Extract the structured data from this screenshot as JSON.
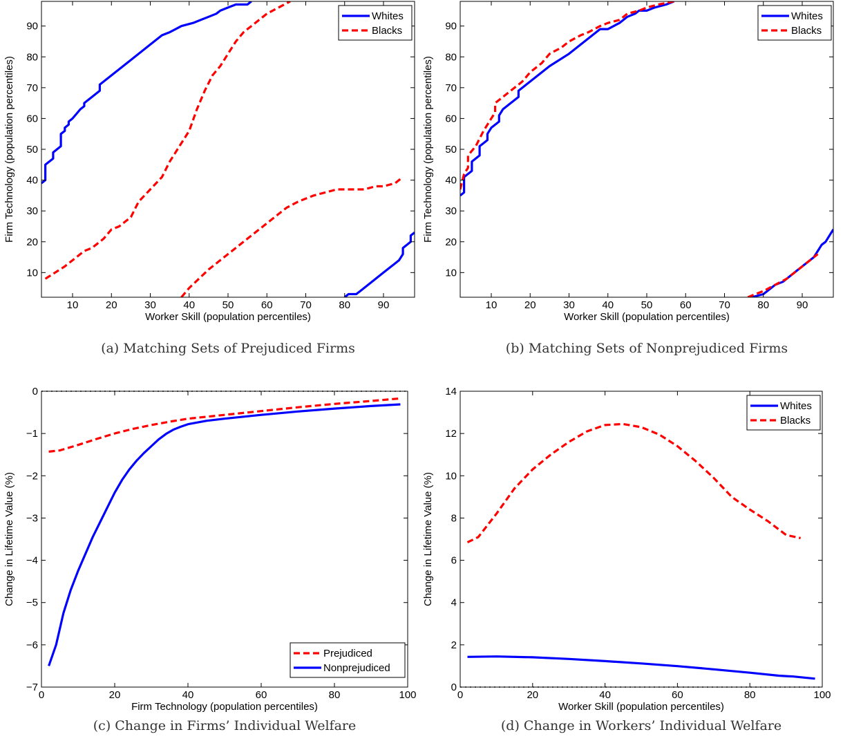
{
  "colors": {
    "blue": "#0000ff",
    "red": "#ff0000"
  },
  "chart_data": [
    {
      "type": "line",
      "caption": "(a) Matching Sets of Prejudiced Firms",
      "xlabel": "Worker Skill (population percentiles)",
      "ylabel": "Firm Technology (population percentiles)",
      "xlim": [
        2,
        98
      ],
      "ylim": [
        2,
        98
      ],
      "xticks": [
        10,
        20,
        30,
        40,
        50,
        60,
        70,
        80,
        90
      ],
      "yticks": [
        10,
        20,
        30,
        40,
        50,
        60,
        70,
        80,
        90
      ],
      "legend_position": "top-right",
      "grid": false,
      "legend": [
        {
          "label": "Whites",
          "color": "#0000ff",
          "dash": false
        },
        {
          "label": "Blacks",
          "color": "#ff0000",
          "dash": true
        }
      ],
      "series": [
        {
          "legend_index": 0,
          "color": "#0000ff",
          "dash": false,
          "x": [
            2,
            3,
            3,
            5,
            5,
            7,
            7,
            8,
            8,
            9,
            9,
            10,
            12,
            13,
            13,
            15,
            17,
            17,
            20,
            25,
            30,
            33,
            35,
            38,
            41,
            43,
            45,
            47,
            48,
            50,
            52,
            55,
            56
          ],
          "y": [
            39,
            40,
            45,
            47,
            49,
            51,
            55,
            56,
            57,
            58,
            59,
            60,
            63,
            64,
            65,
            67,
            69,
            71,
            74,
            79,
            84,
            87,
            88,
            90,
            91,
            92,
            93,
            94,
            95,
            96,
            97,
            97,
            98
          ]
        },
        {
          "legend_index": 1,
          "color": "#ff0000",
          "dash": true,
          "x": [
            3,
            8,
            13,
            15,
            18,
            20,
            22,
            25,
            27,
            30,
            33,
            35,
            38,
            40,
            42,
            44,
            46,
            48,
            50,
            52,
            54,
            56,
            58,
            60,
            63,
            66
          ],
          "y": [
            8,
            12,
            17,
            18,
            21,
            24,
            25,
            28,
            33,
            37,
            41,
            46,
            52,
            56,
            63,
            69,
            74,
            77,
            81,
            85,
            88,
            90,
            92,
            94,
            96,
            98
          ]
        },
        {
          "legend_index": 1,
          "color": "#ff0000",
          "dash": true,
          "x": [
            38,
            40,
            45,
            50,
            55,
            60,
            65,
            68,
            70,
            72,
            75,
            78,
            82,
            85,
            88,
            90,
            93,
            95
          ],
          "y": [
            2,
            5,
            11,
            16,
            21,
            26,
            31,
            33,
            34,
            35,
            36,
            37,
            37,
            37,
            38,
            38,
            39,
            41
          ]
        },
        {
          "legend_index": 0,
          "color": "#0000ff",
          "dash": false,
          "x": [
            80,
            81,
            83,
            84,
            87,
            90,
            93,
            94,
            95,
            95,
            96,
            97,
            97,
            98
          ],
          "y": [
            2,
            3,
            3,
            4,
            7,
            10,
            13,
            14,
            16,
            18,
            19,
            20,
            22,
            23
          ]
        }
      ]
    },
    {
      "type": "line",
      "caption": "(b) Matching Sets of Nonprejudiced Firms",
      "xlabel": "Worker Skill (population percentiles)",
      "ylabel": "Firm Technology (population percentiles)",
      "xlim": [
        2,
        98
      ],
      "ylim": [
        2,
        98
      ],
      "xticks": [
        10,
        20,
        30,
        40,
        50,
        60,
        70,
        80,
        90
      ],
      "yticks": [
        10,
        20,
        30,
        40,
        50,
        60,
        70,
        80,
        90
      ],
      "legend_position": "top-right",
      "grid": false,
      "legend": [
        {
          "label": "Whites",
          "color": "#0000ff",
          "dash": false
        },
        {
          "label": "Blacks",
          "color": "#ff0000",
          "dash": true
        }
      ],
      "series": [
        {
          "legend_index": 0,
          "color": "#0000ff",
          "dash": false,
          "x": [
            2,
            3,
            3,
            5,
            5,
            7,
            7,
            8,
            9,
            9,
            10,
            12,
            12,
            13,
            15,
            17,
            17,
            20,
            25,
            30,
            35,
            38,
            40,
            43,
            45,
            47,
            48,
            50,
            52,
            55,
            57
          ],
          "y": [
            35,
            36,
            41,
            43,
            46,
            48,
            51,
            52,
            53,
            55,
            57,
            59,
            61,
            63,
            65,
            67,
            69,
            72,
            77,
            81,
            86,
            89,
            89,
            91,
            93,
            94,
            95,
            95,
            96,
            97,
            98
          ]
        },
        {
          "legend_index": 1,
          "color": "#ff0000",
          "dash": true,
          "x": [
            2,
            3,
            4,
            4,
            6,
            8,
            10,
            11,
            11,
            13,
            15,
            18,
            20,
            23,
            25,
            28,
            30,
            33,
            35,
            38,
            40,
            43,
            45,
            48,
            50,
            53,
            57
          ],
          "y": [
            37,
            42,
            44,
            48,
            51,
            56,
            60,
            62,
            65,
            67,
            69,
            72,
            75,
            78,
            81,
            83,
            85,
            87,
            88,
            90,
            91,
            92,
            94,
            95,
            96,
            97,
            98
          ]
        },
        {
          "legend_index": 0,
          "color": "#0000ff",
          "dash": false,
          "x": [
            77,
            80,
            83,
            85,
            88,
            90,
            93,
            94,
            95,
            96,
            97,
            98
          ],
          "y": [
            2,
            3,
            6,
            7,
            10,
            12,
            15,
            17,
            19,
            20,
            22,
            24
          ]
        },
        {
          "legend_index": 1,
          "color": "#ff0000",
          "dash": true,
          "x": [
            76,
            78,
            80,
            83,
            86,
            89,
            92,
            94
          ],
          "y": [
            2,
            3,
            4,
            6,
            8,
            11,
            14,
            16
          ]
        }
      ]
    },
    {
      "type": "line",
      "caption": "(c) Change in Firms’ Individual Welfare",
      "xlabel": "Firm Technology (population percentiles)",
      "ylabel": "Change in Lifetime Value (%)",
      "xlim": [
        0,
        100
      ],
      "ylim": [
        -7,
        0
      ],
      "xticks": [
        0,
        20,
        40,
        60,
        80,
        100
      ],
      "yticks": [
        -7,
        -6,
        -5,
        -4,
        -3,
        -2,
        -1,
        0
      ],
      "legend_position": "bottom-right",
      "grid": false,
      "reference_line": 0,
      "legend": [
        {
          "label": "Prejudiced",
          "color": "#ff0000",
          "dash": true
        },
        {
          "label": "Nonprejudiced",
          "color": "#0000ff",
          "dash": false
        }
      ],
      "series": [
        {
          "legend_index": 0,
          "color": "#ff0000",
          "dash": true,
          "x": [
            2,
            5,
            10,
            15,
            20,
            25,
            30,
            35,
            40,
            50,
            60,
            70,
            80,
            90,
            98
          ],
          "y": [
            -1.43,
            -1.4,
            -1.27,
            -1.13,
            -1.0,
            -0.89,
            -0.8,
            -0.72,
            -0.65,
            -0.56,
            -0.47,
            -0.38,
            -0.3,
            -0.23,
            -0.17
          ]
        },
        {
          "legend_index": 1,
          "color": "#0000ff",
          "dash": false,
          "x": [
            2,
            4,
            6,
            8,
            10,
            12,
            14,
            16,
            18,
            20,
            22,
            24,
            26,
            28,
            30,
            32,
            34,
            36,
            38,
            40,
            45,
            50,
            60,
            70,
            80,
            90,
            98
          ],
          "y": [
            -6.5,
            -6.0,
            -5.25,
            -4.7,
            -4.25,
            -3.85,
            -3.45,
            -3.1,
            -2.75,
            -2.4,
            -2.1,
            -1.85,
            -1.64,
            -1.46,
            -1.3,
            -1.14,
            -1.01,
            -0.91,
            -0.84,
            -0.78,
            -0.7,
            -0.65,
            -0.56,
            -0.48,
            -0.41,
            -0.35,
            -0.31
          ]
        }
      ]
    },
    {
      "type": "line",
      "caption": "(d) Change in Workers’ Individual Welfare",
      "xlabel": "Worker Skill (population percentiles)",
      "ylabel": "Change in Lifetime Value (%)",
      "xlim": [
        0,
        100
      ],
      "ylim": [
        0,
        14
      ],
      "xticks": [
        0,
        20,
        40,
        60,
        80,
        100
      ],
      "yticks": [
        0,
        2,
        4,
        6,
        8,
        10,
        12,
        14
      ],
      "legend_position": "top-right",
      "grid": false,
      "reference_line": 0,
      "legend": [
        {
          "label": "Whites",
          "color": "#0000ff",
          "dash": false
        },
        {
          "label": "Blacks",
          "color": "#ff0000",
          "dash": true
        }
      ],
      "series": [
        {
          "legend_index": 0,
          "color": "#0000ff",
          "dash": false,
          "x": [
            2,
            10,
            20,
            30,
            40,
            50,
            60,
            70,
            80,
            88,
            92,
            98
          ],
          "y": [
            1.43,
            1.45,
            1.41,
            1.33,
            1.23,
            1.12,
            0.99,
            0.84,
            0.68,
            0.54,
            0.5,
            0.4
          ]
        },
        {
          "legend_index": 1,
          "color": "#ff0000",
          "dash": true,
          "x": [
            2,
            5,
            10,
            15,
            20,
            25,
            30,
            35,
            40,
            45,
            50,
            55,
            60,
            65,
            70,
            75,
            80,
            85,
            90,
            94
          ],
          "y": [
            6.85,
            7.1,
            8.2,
            9.4,
            10.3,
            11.0,
            11.6,
            12.1,
            12.4,
            12.45,
            12.3,
            11.95,
            11.4,
            10.7,
            9.9,
            9.0,
            8.4,
            7.85,
            7.2,
            7.05
          ]
        }
      ]
    }
  ]
}
